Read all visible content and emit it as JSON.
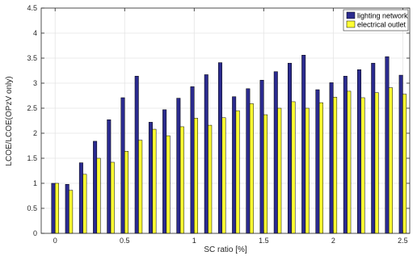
{
  "chart_data": {
    "type": "bar",
    "xlabel": "SC ratio [%]",
    "ylabel": "LCOE/LCOE(OPzV only)",
    "xlim": [
      -0.1,
      2.55
    ],
    "ylim": [
      0,
      4.5
    ],
    "xticks": [
      0,
      0.5,
      1,
      1.5,
      2,
      2.5
    ],
    "xtick_labels": [
      "0",
      "0.5",
      "1",
      "1.5",
      "2",
      "2.5"
    ],
    "yticks": [
      0,
      0.5,
      1,
      1.5,
      2,
      2.5,
      3,
      3.5,
      4,
      4.5
    ],
    "ytick_labels": [
      "0",
      "0.5",
      "1",
      "1.5",
      "2",
      "2.5",
      "3",
      "3.5",
      "4",
      "4.5"
    ],
    "grid": true,
    "legend_position": "top-right",
    "x": [
      0,
      0.1,
      0.2,
      0.3,
      0.4,
      0.5,
      0.6,
      0.7,
      0.8,
      0.9,
      1.0,
      1.1,
      1.2,
      1.3,
      1.4,
      1.5,
      1.6,
      1.7,
      1.8,
      1.9,
      2.0,
      2.1,
      2.2,
      2.3,
      2.4,
      2.5
    ],
    "series": [
      {
        "name": "lighting network",
        "color": "#2b2b8f",
        "values": [
          1.0,
          0.98,
          1.41,
          1.84,
          2.27,
          2.71,
          3.14,
          2.22,
          2.47,
          2.7,
          2.93,
          3.17,
          3.41,
          2.73,
          2.89,
          3.06,
          3.23,
          3.4,
          3.56,
          2.87,
          3.01,
          3.14,
          3.27,
          3.4,
          3.53,
          3.16
        ]
      },
      {
        "name": "electrical outlet",
        "color": "#ffff33",
        "values": [
          1.0,
          0.86,
          1.18,
          1.5,
          1.42,
          1.64,
          1.86,
          2.08,
          1.95,
          2.13,
          2.3,
          2.16,
          2.31,
          2.45,
          2.59,
          2.37,
          2.5,
          2.63,
          2.5,
          2.61,
          2.72,
          2.84,
          2.71,
          2.81,
          2.91,
          2.78
        ]
      }
    ]
  }
}
